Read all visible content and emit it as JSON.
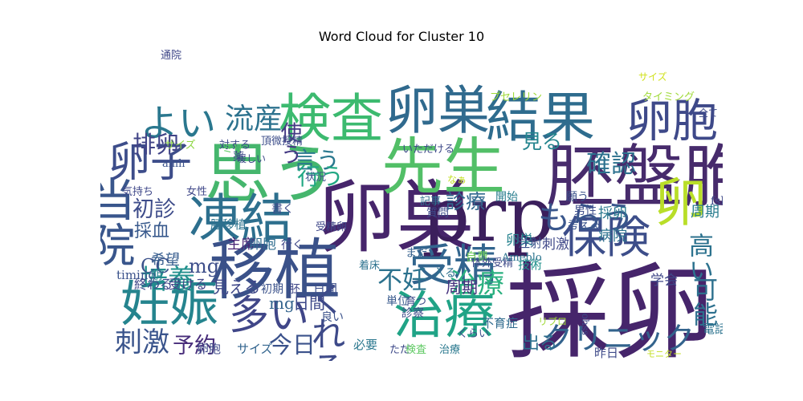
{
  "chart_data": {
    "type": "wordcloud",
    "title": "Word Cloud for Cluster 10",
    "background": "#ffffff",
    "colormap": "viridis",
    "words": [
      {
        "text": "採卵",
        "weight": 1.0,
        "color": "#46256b"
      },
      {
        "text": "卵巣",
        "weight": 0.8,
        "color": "#46256b"
      },
      {
        "text": "prp",
        "weight": 0.78,
        "color": "#3b1f5c"
      },
      {
        "text": "胚盤胞",
        "weight": 0.72,
        "color": "#472b6c"
      },
      {
        "text": "思う",
        "weight": 0.7,
        "color": "#45b66d"
      },
      {
        "text": "移植",
        "weight": 0.7,
        "color": "#3a5189"
      },
      {
        "text": "先生",
        "weight": 0.66,
        "color": "#52bf67"
      },
      {
        "text": "結果",
        "weight": 0.6,
        "color": "#2e6c8e"
      },
      {
        "text": "卵巣",
        "weight": 0.58,
        "color": "#306a8e"
      },
      {
        "text": "検査",
        "weight": 0.58,
        "color": "#3cba6f"
      },
      {
        "text": "凍結",
        "weight": 0.58,
        "color": "#2d6f8e"
      },
      {
        "text": "卵",
        "weight": 0.58,
        "color": "#b9de28"
      },
      {
        "text": "治療",
        "weight": 0.56,
        "color": "#20a386"
      },
      {
        "text": "妊娠",
        "weight": 0.55,
        "color": "#25848e"
      },
      {
        "text": "卵胞",
        "weight": 0.52,
        "color": "#3e4989"
      },
      {
        "text": "当院",
        "weight": 0.52,
        "color": "#39568c"
      },
      {
        "text": "受精",
        "weight": 0.5,
        "color": "#32658e"
      },
      {
        "text": "保険",
        "weight": 0.5,
        "color": "#3d4e8a"
      },
      {
        "text": "卵子",
        "weight": 0.48,
        "color": "#3d4d8a"
      },
      {
        "text": "多い",
        "weight": 0.46,
        "color": "#404688"
      },
      {
        "text": "よい",
        "weight": 0.44,
        "color": "#2a778e"
      },
      {
        "text": "くれる",
        "weight": 0.4,
        "color": "#3e4a89"
      },
      {
        "text": "もらう",
        "weight": 0.38,
        "color": "#39568c"
      },
      {
        "text": "クリニック",
        "weight": 0.36,
        "color": "#33638d"
      },
      {
        "text": "流産",
        "weight": 0.34,
        "color": "#2c728e"
      },
      {
        "text": "刺激",
        "weight": 0.32,
        "color": "#3a548c"
      },
      {
        "text": "培養",
        "weight": 0.32,
        "color": "#21908d"
      },
      {
        "text": "治療",
        "weight": 0.32,
        "color": "#2ab07f"
      },
      {
        "text": "不妊",
        "weight": 0.3,
        "color": "#2c728e"
      },
      {
        "text": "確認",
        "weight": 0.3,
        "color": "#2c718e"
      },
      {
        "text": "可能",
        "weight": 0.3,
        "color": "#2d708e"
      },
      {
        "text": "高い",
        "weight": 0.3,
        "color": "#2c728e"
      },
      {
        "text": "今日",
        "weight": 0.28,
        "color": "#3b528b"
      },
      {
        "text": "言う",
        "weight": 0.28,
        "color": "#2a788e"
      },
      {
        "text": "行う",
        "weight": 0.28,
        "color": "#22a884"
      },
      {
        "text": "排卵",
        "weight": 0.28,
        "color": "#414487"
      },
      {
        "text": "使う",
        "weight": 0.26,
        "color": "#443983"
      },
      {
        "text": "初診",
        "weight": 0.26,
        "color": "#3e4c8a"
      },
      {
        "text": "予約",
        "weight": 0.26,
        "color": "#472c7a"
      },
      {
        "text": "診療",
        "weight": 0.24,
        "color": "#31688e"
      },
      {
        "text": "見る",
        "weight": 0.24,
        "color": "#25858e"
      },
      {
        "text": "CC",
        "weight": 0.22,
        "color": "#3b528b"
      },
      {
        "text": "mg",
        "weight": 0.22,
        "color": "#3d4e8a"
      },
      {
        "text": "採血",
        "weight": 0.2,
        "color": "#38598c"
      },
      {
        "text": "出る",
        "weight": 0.2,
        "color": "#2d708e"
      },
      {
        "text": "見える",
        "weight": 0.18,
        "color": "#3f4889"
      },
      {
        "text": "周期",
        "weight": 0.18,
        "color": "#46337e"
      },
      {
        "text": "mg",
        "weight": 0.18,
        "color": "#33638d"
      },
      {
        "text": "日間",
        "weight": 0.18,
        "color": "#3e4989"
      },
      {
        "text": "希望",
        "weight": 0.16,
        "color": "#365c8d"
      },
      {
        "text": "病院",
        "weight": 0.16,
        "color": "#2c728e"
      },
      {
        "text": "採卵",
        "weight": 0.16,
        "color": "#2a788e"
      },
      {
        "text": "周期",
        "weight": 0.16,
        "color": "#287c8e"
      },
      {
        "text": "学会",
        "weight": 0.14,
        "color": "#3f4788"
      },
      {
        "text": "卵巣",
        "weight": 0.14,
        "color": "#26828e"
      },
      {
        "text": "刺激",
        "weight": 0.14,
        "color": "#3f4889"
      },
      {
        "text": "主席",
        "weight": 0.14,
        "color": "#482374"
      },
      {
        "text": "卵胞",
        "weight": 0.14,
        "color": "#2f6c8e"
      },
      {
        "text": "終わる",
        "weight": 0.13,
        "color": "#3f4889"
      },
      {
        "text": "受ける",
        "weight": 0.13,
        "color": "#404588"
      },
      {
        "text": "timing",
        "weight": 0.12,
        "color": "#3b528b"
      },
      {
        "text": "期",
        "weight": 0.12,
        "color": "#26828e"
      },
      {
        "text": "日間",
        "weight": 0.12,
        "color": "#3d4e8a"
      },
      {
        "text": "サイズ",
        "weight": 0.12,
        "color": "#32648e"
      },
      {
        "text": "卵胞",
        "weight": 0.12,
        "color": "#3e4a89"
      },
      {
        "text": "胚移植",
        "weight": 0.12,
        "color": "#2c738e"
      },
      {
        "text": "必要",
        "weight": 0.12,
        "color": "#2a778e"
      },
      {
        "text": "技術",
        "weight": 0.12,
        "color": "#21918c"
      },
      {
        "text": "注射",
        "weight": 0.12,
        "color": "#3b518b"
      },
      {
        "text": "不育症",
        "weight": 0.11,
        "color": "#2f6b8e"
      },
      {
        "text": "昨日",
        "weight": 0.11,
        "color": "#3e4a89"
      },
      {
        "text": "電話",
        "weight": 0.11,
        "color": "#2c738e"
      },
      {
        "text": "fsh",
        "weight": 0.1,
        "color": "#3e4989"
      },
      {
        "text": "男性",
        "weight": 0.1,
        "color": "#3d4d8a"
      },
      {
        "text": "開始",
        "weight": 0.1,
        "color": "#287d8e"
      },
      {
        "text": "質問",
        "weight": 0.1,
        "color": "#3e4a89"
      },
      {
        "text": "願う",
        "weight": 0.1,
        "color": "#3b528b"
      },
      {
        "text": "考える",
        "weight": 0.1,
        "color": "#3a548c"
      },
      {
        "text": "書く",
        "weight": 0.1,
        "color": "#3e4a89"
      },
      {
        "text": "入る",
        "weight": 0.1,
        "color": "#2d708e"
      },
      {
        "text": "行く",
        "weight": 0.1,
        "color": "#3f4889"
      },
      {
        "text": "自費",
        "weight": 0.1,
        "color": "#6ece58"
      },
      {
        "text": "単位",
        "weight": 0.1,
        "color": "#38598c"
      },
      {
        "text": "診察",
        "weight": 0.1,
        "color": "#3e4989"
      },
      {
        "text": "初期",
        "weight": 0.1,
        "color": "#3b528b"
      },
      {
        "text": "胚",
        "weight": 0.1,
        "color": "#3f4788"
      },
      {
        "text": "良い",
        "weight": 0.1,
        "color": "#3b528b"
      },
      {
        "text": "まだ",
        "weight": 0.1,
        "color": "#35608d"
      },
      {
        "text": "薬",
        "weight": 0.1,
        "color": "#3e4a89"
      },
      {
        "text": "女性",
        "weight": 0.09,
        "color": "#3f4788"
      },
      {
        "text": "気持ち",
        "weight": 0.09,
        "color": "#3f4889"
      },
      {
        "text": "着床",
        "weight": 0.09,
        "color": "#2c728e"
      },
      {
        "text": "状況",
        "weight": 0.09,
        "color": "#3b528b"
      },
      {
        "text": "記事",
        "weight": 0.09,
        "color": "#2d708e"
      },
      {
        "text": "体外受精",
        "weight": 0.09,
        "color": "#3e4a89"
      },
      {
        "text": "受精卵",
        "weight": 0.09,
        "color": "#3f4788"
      },
      {
        "text": "くらい",
        "weight": 0.09,
        "color": "#3d4d8a"
      },
      {
        "text": "ただ",
        "weight": 0.08,
        "color": "#3e4a89"
      },
      {
        "text": "検査",
        "weight": 0.08,
        "color": "#5ec962"
      },
      {
        "text": "治療",
        "weight": 0.08,
        "color": "#2a788e"
      },
      {
        "text": "Ameblo",
        "weight": 0.08,
        "color": "#2c738e"
      },
      {
        "text": "育つ",
        "weight": 0.08,
        "color": "#3e4a89"
      },
      {
        "text": "いただける",
        "weight": 0.08,
        "color": "#3e4a89"
      },
      {
        "text": "頂微授精",
        "weight": 0.08,
        "color": "#3d4e8a"
      },
      {
        "text": "対する",
        "weight": 0.08,
        "color": "#3e4a89"
      },
      {
        "text": "サイズ",
        "weight": 0.08,
        "color": "#8fd744"
      },
      {
        "text": "ミリ",
        "weight": 0.08,
        "color": "#5ec962"
      },
      {
        "text": "通院",
        "weight": 0.08,
        "color": "#3f4788"
      },
      {
        "text": "amh",
        "weight": 0.08,
        "color": "#3b528b"
      },
      {
        "text": "プセレリン",
        "weight": 0.08,
        "color": "#a0da39"
      },
      {
        "text": "タイミング",
        "weight": 0.08,
        "color": "#a0da39"
      },
      {
        "text": "全て",
        "weight": 0.07,
        "color": "#3e4a89"
      },
      {
        "text": "暖しい",
        "weight": 0.07,
        "color": "#3e4989"
      },
      {
        "text": "なぁ",
        "weight": 0.07,
        "color": "#c2df23"
      },
      {
        "text": "ohss",
        "weight": 0.07,
        "color": "#3e4a89"
      },
      {
        "text": "リプロ",
        "weight": 0.07,
        "color": "#a0da39"
      },
      {
        "text": "サイズ",
        "weight": 0.07,
        "color": "#d0e11c"
      },
      {
        "text": "モニター",
        "weight": 0.06,
        "color": "#c2df23"
      }
    ]
  }
}
